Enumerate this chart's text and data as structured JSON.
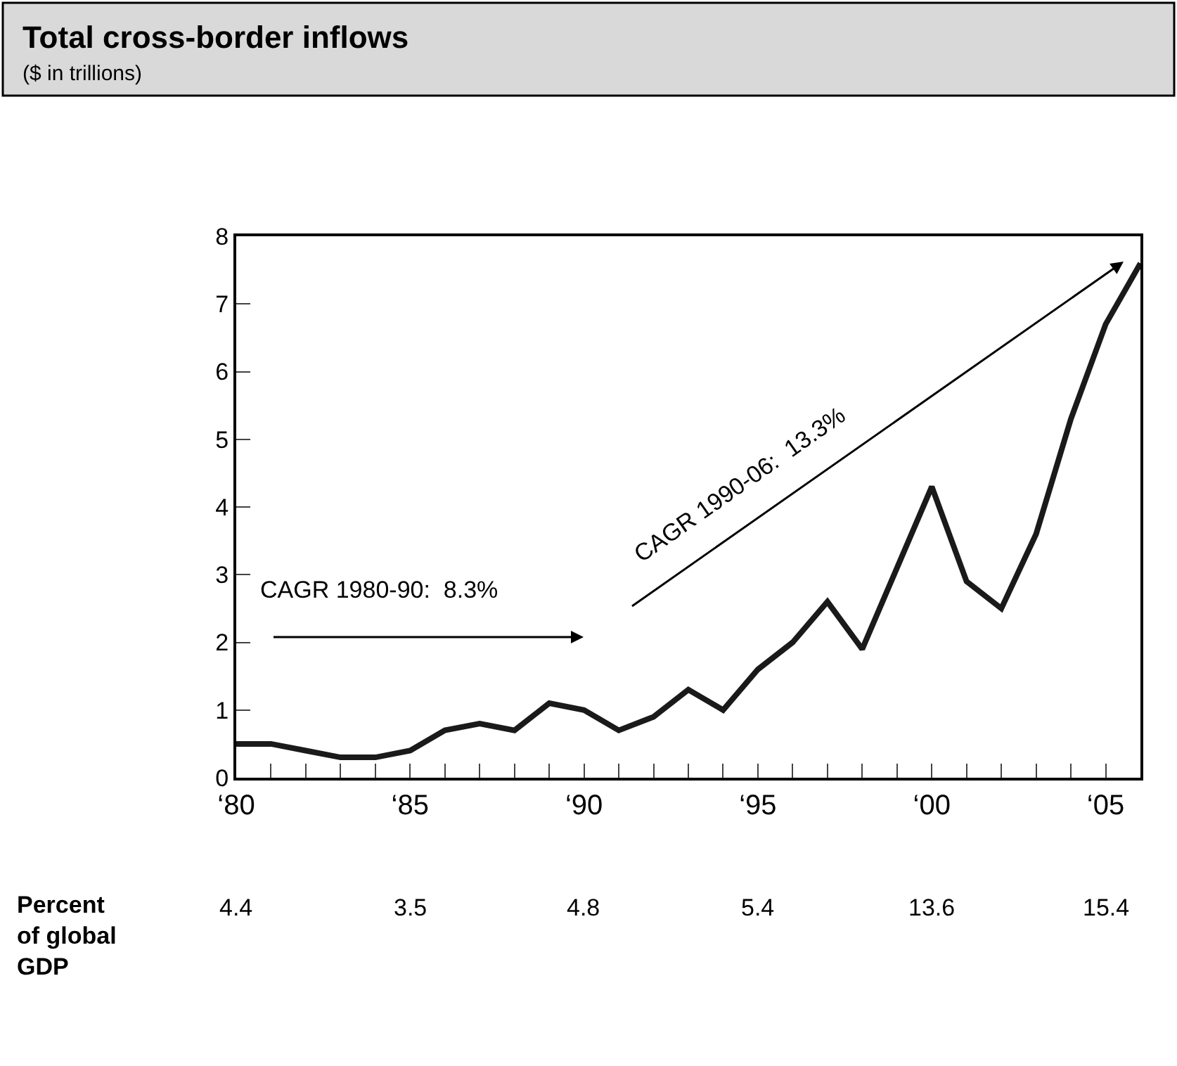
{
  "chart_data": {
    "type": "line",
    "title": "Total cross-border inflows",
    "subtitle": "($ in trillions)",
    "categories": [
      "‘80",
      null,
      null,
      null,
      null,
      "‘85",
      null,
      null,
      null,
      null,
      "‘90",
      null,
      null,
      null,
      null,
      "‘95",
      null,
      null,
      null,
      null,
      "‘00",
      null,
      null,
      null,
      null,
      "‘05",
      null
    ],
    "series": [
      {
        "color": "#1a1a1a",
        "values": [
          0.5,
          0.5,
          0.4,
          0.3,
          0.3,
          0.4,
          0.7,
          0.8,
          0.7,
          1.1,
          1.0,
          0.7,
          0.9,
          1.3,
          1.0,
          1.6,
          2.0,
          2.6,
          1.9,
          3.1,
          4.3,
          2.9,
          2.5,
          3.6,
          5.3,
          6.7,
          7.6
        ]
      }
    ],
    "ylim": [
      0,
      8
    ],
    "yticks": [
      0,
      1,
      2,
      3,
      4,
      5,
      6,
      7,
      8
    ],
    "marker": "none",
    "line_style": "solid",
    "annotations": [
      "CAGR 1980-90:  8.3%",
      "CAGR 1990-06:  13.3%",
      "Percent of global GDP",
      "4.4",
      "3.5",
      "4.8",
      "5.4",
      "13.6",
      "15.4"
    ]
  }
}
